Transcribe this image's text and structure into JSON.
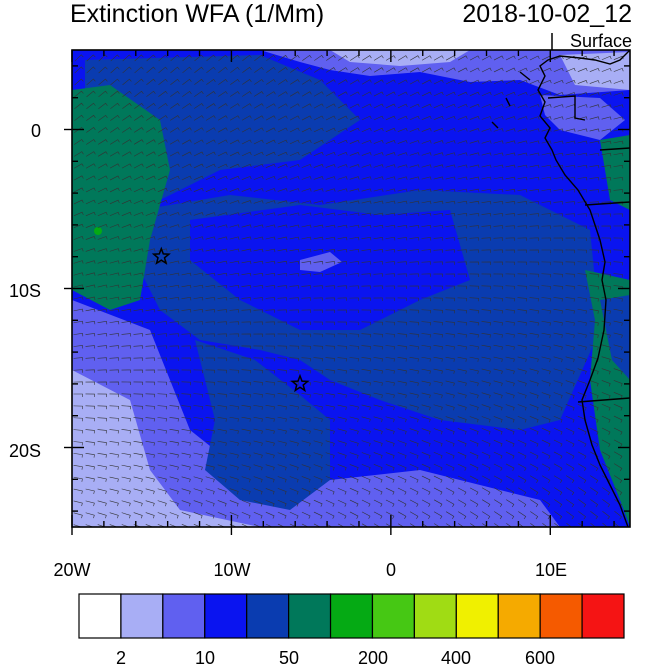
{
  "header": {
    "title": "Extinction WFA (1/Mm)",
    "timestamp": "2018-10-02_12",
    "level": "Surface"
  },
  "map": {
    "lon_labels": [
      "20W",
      "10W",
      "0",
      "10E"
    ],
    "lat_labels": [
      "0",
      "10S",
      "20S"
    ],
    "lon_range": [
      -20,
      15
    ],
    "lat_range": [
      -25,
      5
    ],
    "station_markers": [
      {
        "lon": -14.4,
        "lat": -8.0,
        "symbol": "star"
      },
      {
        "lon": -5.7,
        "lat": -16.0,
        "symbol": "star"
      }
    ]
  },
  "colorbar": {
    "labels": [
      "2",
      "10",
      "50",
      "200",
      "400",
      "600"
    ],
    "colors": [
      "#ffffff",
      "#a8aef5",
      "#6060f0",
      "#0a14f0",
      "#0a3cb0",
      "#00785a",
      "#05aa14",
      "#46c814",
      "#a0dc14",
      "#f0f000",
      "#f5aa00",
      "#f55a00",
      "#f51414"
    ]
  }
}
